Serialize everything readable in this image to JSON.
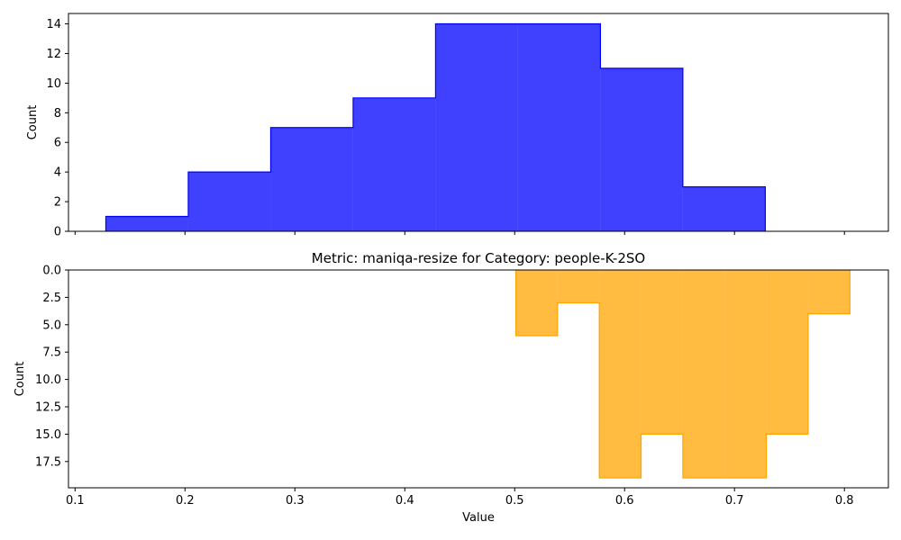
{
  "chart_data": [
    {
      "type": "area",
      "subtype": "step-histogram",
      "title": "",
      "xlabel": "",
      "ylabel": "Count",
      "xlim": [
        0.094,
        0.84
      ],
      "ylim": [
        0,
        14.7
      ],
      "x_inverted": false,
      "y_inverted": false,
      "x_ticks": [
        0.1,
        0.2,
        0.3,
        0.4,
        0.5,
        0.6,
        0.7,
        0.8
      ],
      "x_tick_labels_visible": false,
      "y_ticks": [
        0,
        2,
        4,
        6,
        8,
        10,
        12,
        14
      ],
      "y_tick_labels": [
        "0",
        "2",
        "4",
        "6",
        "8",
        "10",
        "12",
        "14"
      ],
      "grid": false,
      "color": "#0000ff",
      "bin_edges": [
        0.128,
        0.203,
        0.278,
        0.353,
        0.428,
        0.503,
        0.578,
        0.653,
        0.728
      ],
      "counts": [
        1,
        4,
        7,
        9,
        14,
        14,
        11,
        3
      ]
    },
    {
      "type": "area",
      "subtype": "step-histogram",
      "title": "Metric: maniqa-resize for Category: people-K-2SO",
      "xlabel": "Value",
      "ylabel": "Count",
      "xlim": [
        0.094,
        0.84
      ],
      "ylim": [
        0,
        19.9
      ],
      "x_inverted": false,
      "y_inverted": true,
      "x_ticks": [
        0.1,
        0.2,
        0.3,
        0.4,
        0.5,
        0.6,
        0.7,
        0.8
      ],
      "x_tick_labels": [
        "0.1",
        "0.2",
        "0.3",
        "0.4",
        "0.5",
        "0.6",
        "0.7",
        "0.8"
      ],
      "y_ticks": [
        0,
        2.5,
        5,
        7.5,
        10,
        12.5,
        15,
        17.5
      ],
      "y_tick_labels": [
        "0.0",
        "2.5",
        "5.0",
        "7.5",
        "10.0",
        "12.5",
        "15.0",
        "17.5"
      ],
      "grid": false,
      "color": "#ffa500",
      "bin_edges": [
        0.501,
        0.539,
        0.577,
        0.615,
        0.653,
        0.691,
        0.729,
        0.767,
        0.805
      ],
      "counts": [
        6,
        3,
        19,
        15,
        19,
        19,
        15,
        4
      ]
    }
  ]
}
